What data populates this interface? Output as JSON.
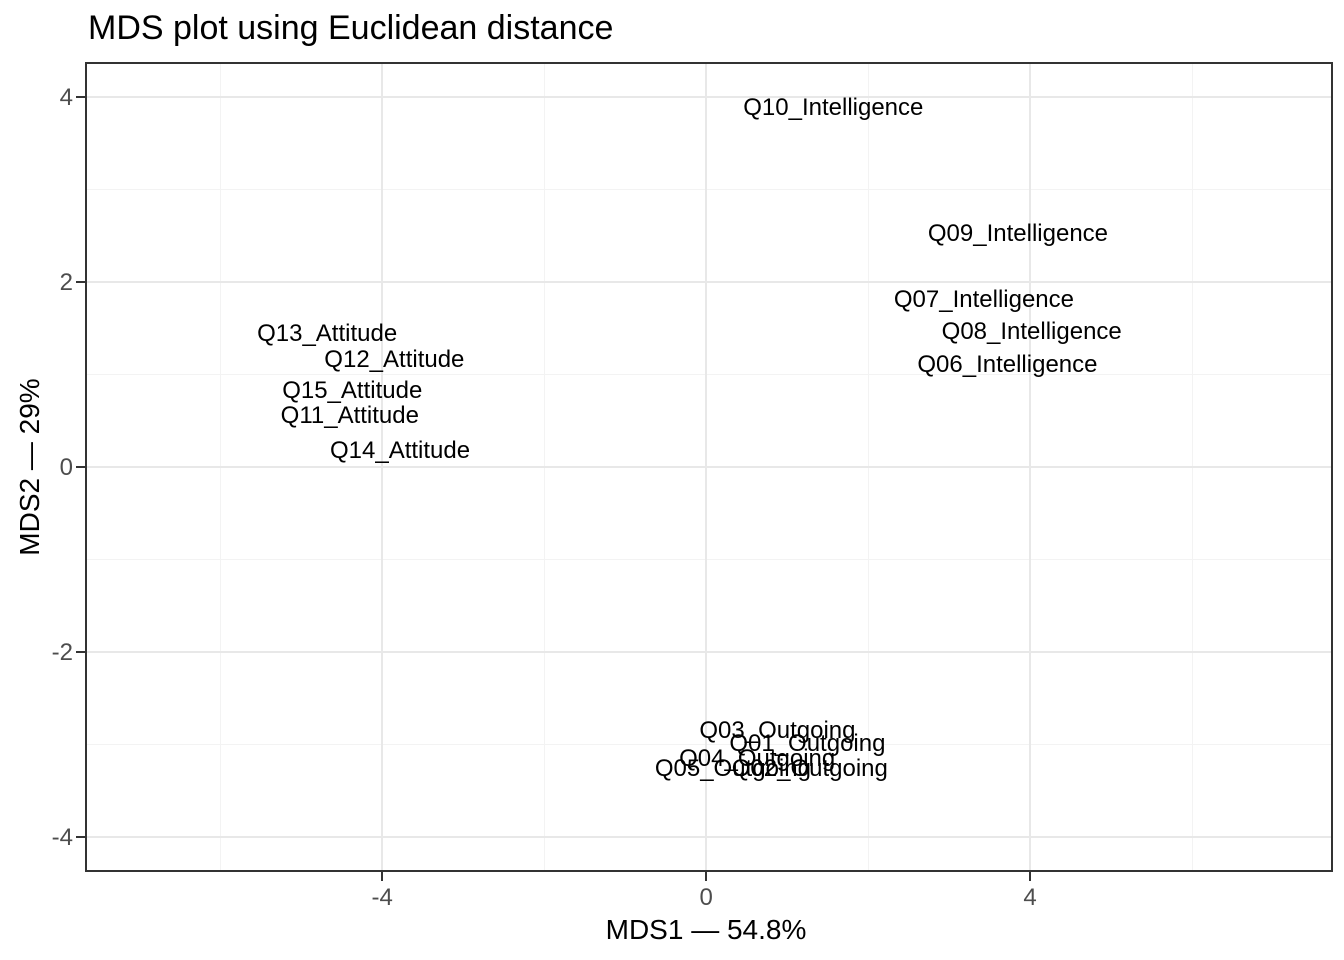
{
  "chart_data": {
    "type": "scatter",
    "title": "MDS plot using Euclidean distance",
    "xlabel": "MDS1 — 54.8%",
    "ylabel": "MDS2 — 29%",
    "xlim": [
      -7.67,
      7.74
    ],
    "ylim": [
      -4.38,
      4.38
    ],
    "grid": "major and minor, light gray on white panel",
    "legend_position": "none",
    "marker": "text labels only (no point symbols)",
    "x_ticks": [
      {
        "value": -4,
        "label": "-4"
      },
      {
        "value": 0,
        "label": "0"
      },
      {
        "value": 4,
        "label": "4"
      }
    ],
    "y_ticks": [
      {
        "value": 4,
        "label": "4"
      },
      {
        "value": 2,
        "label": "2"
      },
      {
        "value": 0,
        "label": "0"
      },
      {
        "value": -2,
        "label": "-2"
      },
      {
        "value": -4,
        "label": "-4"
      }
    ],
    "x_minor_gridlines": [
      -6,
      -2,
      2,
      6
    ],
    "y_minor_gridlines": [
      -3,
      -1,
      1,
      3
    ],
    "points": [
      {
        "label": "Q10_Intelligence",
        "x": 1.57,
        "y": 3.88,
        "group": "Intelligence"
      },
      {
        "label": "Q09_Intelligence",
        "x": 3.85,
        "y": 2.52,
        "group": "Intelligence"
      },
      {
        "label": "Q07_Intelligence",
        "x": 3.43,
        "y": 1.81,
        "group": "Intelligence"
      },
      {
        "label": "Q08_Intelligence",
        "x": 4.02,
        "y": 1.46,
        "group": "Intelligence"
      },
      {
        "label": "Q06_Intelligence",
        "x": 3.72,
        "y": 1.1,
        "group": "Intelligence"
      },
      {
        "label": "Q13_Attitude",
        "x": -4.68,
        "y": 1.44,
        "group": "Attitude"
      },
      {
        "label": "Q12_Attitude",
        "x": -3.85,
        "y": 1.16,
        "group": "Attitude"
      },
      {
        "label": "Q15_Attitude",
        "x": -4.37,
        "y": 0.82,
        "group": "Attitude"
      },
      {
        "label": "Q11_Attitude",
        "x": -4.4,
        "y": 0.55,
        "group": "Attitude"
      },
      {
        "label": "Q14_Attitude",
        "x": -3.78,
        "y": 0.17,
        "group": "Attitude"
      },
      {
        "label": "Q03_Outgoing",
        "x": 0.88,
        "y": -2.85,
        "group": "Outgoing"
      },
      {
        "label": "Q01_Outgoing",
        "x": 1.25,
        "y": -3.0,
        "group": "Outgoing"
      },
      {
        "label": "Q04_Outgoing",
        "x": 0.63,
        "y": -3.16,
        "group": "Outgoing"
      },
      {
        "label": "Q05_Outgoing",
        "x": 0.33,
        "y": -3.27,
        "group": "Outgoing"
      },
      {
        "label": "Q02_Outgoing",
        "x": 1.28,
        "y": -3.27,
        "group": "Outgoing"
      }
    ]
  },
  "colors": {
    "background": "#ffffff",
    "panel_background": "#ffffff",
    "panel_border": "#333333",
    "grid_major": "#e8e8e8",
    "grid_minor": "#f3f3f3",
    "tick_mark": "#333333",
    "tick_label": "#4d4d4d",
    "text": "#000000"
  }
}
